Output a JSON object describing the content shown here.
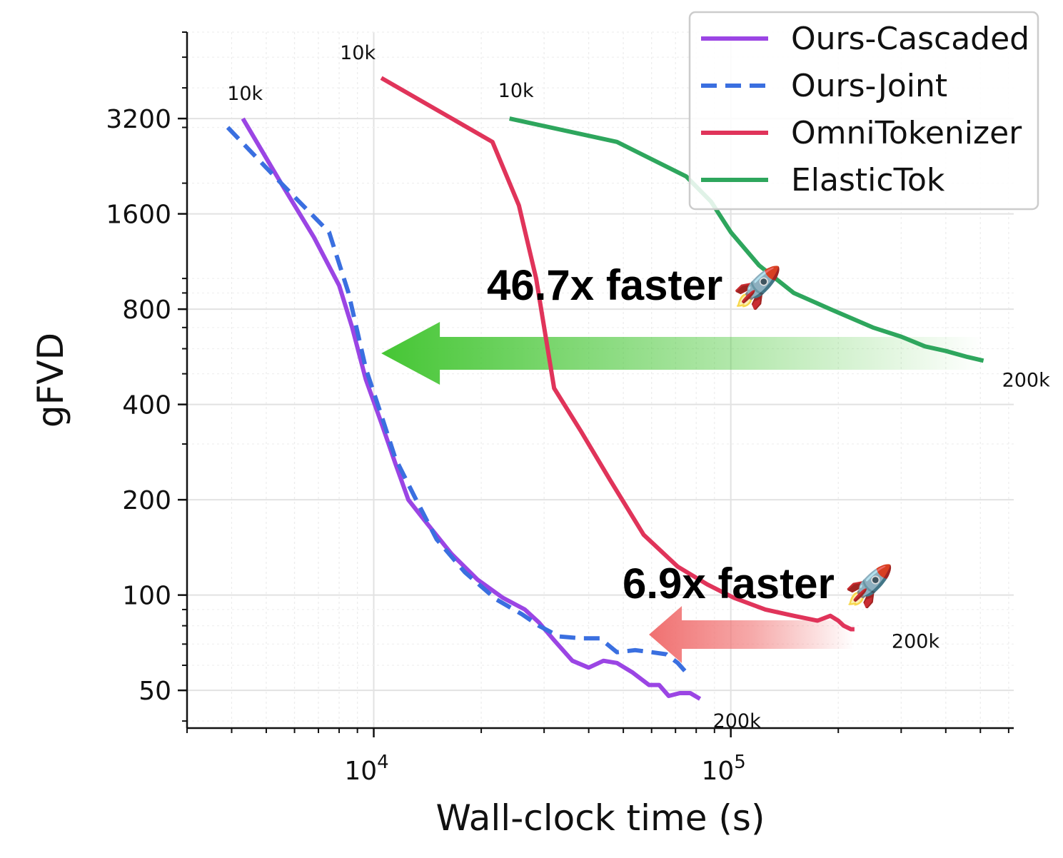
{
  "chart_data": {
    "type": "line",
    "xlabel": "Wall-clock time (s)",
    "ylabel": "gFVD",
    "xscale": "log",
    "yscale": "log",
    "xlim": [
      3000,
      620000
    ],
    "ylim": [
      38,
      6000
    ],
    "x_ticks": [
      {
        "value": 10000,
        "base": "10",
        "exp": "4"
      },
      {
        "value": 100000,
        "base": "10",
        "exp": "5"
      }
    ],
    "y_ticks": [
      {
        "value": 3200,
        "label": "3200"
      },
      {
        "value": 1600,
        "label": "1600"
      },
      {
        "value": 800,
        "label": "800"
      },
      {
        "value": 400,
        "label": "400"
      },
      {
        "value": 200,
        "label": "200"
      },
      {
        "value": 100,
        "label": "100"
      },
      {
        "value": 50,
        "label": "50"
      }
    ],
    "grid": true,
    "legend_position": "top-right",
    "series": [
      {
        "name": "Ours-Cascaded",
        "color": "#9b45e4",
        "dash": "solid",
        "x": [
          4300,
          5500,
          6800,
          8000,
          8700,
          9500,
          10500,
          11500,
          12500,
          14000,
          16500,
          19500,
          23000,
          26500,
          29000,
          32000,
          36000,
          40000,
          44000,
          48000,
          53000,
          59000,
          63000,
          67000,
          72000,
          77000,
          82000
        ],
        "y": [
          3200,
          2000,
          1350,
          950,
          700,
          480,
          350,
          260,
          200,
          170,
          135,
          112,
          98,
          90,
          82,
          72,
          62,
          59,
          62,
          61,
          57,
          52,
          52,
          48,
          49,
          49,
          47
        ]
      },
      {
        "name": "Ours-Joint",
        "color": "#3a6fe0",
        "dash": "dashed",
        "x": [
          3900,
          5500,
          7500,
          8500,
          9500,
          10500,
          11500,
          13000,
          15000,
          18000,
          22000,
          26000,
          29000,
          33000,
          38000,
          43000,
          48000,
          54000,
          60000,
          66000,
          71000,
          76000
        ],
        "y": [
          3000,
          2000,
          1400,
          900,
          520,
          370,
          270,
          205,
          150,
          118,
          97,
          87,
          80,
          74,
          73,
          73,
          66,
          67,
          66,
          65,
          61,
          56
        ]
      },
      {
        "name": "OmniTokenizer",
        "color": "#e0345a",
        "dash": "solid",
        "x": [
          10500,
          21500,
          25500,
          28500,
          32000,
          38000,
          46000,
          57000,
          71000,
          86000,
          102000,
          125000,
          150000,
          175000,
          190000,
          200000,
          207000,
          217000,
          222000
        ],
        "y": [
          4300,
          2700,
          1700,
          1000,
          450,
          330,
          230,
          155,
          123,
          108,
          98,
          90,
          86,
          83,
          86,
          83,
          80,
          78,
          78
        ]
      },
      {
        "name": "ElasticTok",
        "color": "#2ea65d",
        "dash": "solid",
        "x": [
          24000,
          48000,
          75000,
          88000,
          100000,
          120000,
          150000,
          190000,
          250000,
          300000,
          350000,
          400000,
          460000,
          510000
        ],
        "y": [
          3200,
          2700,
          2100,
          1750,
          1400,
          1100,
          900,
          800,
          700,
          655,
          610,
          590,
          565,
          550
        ]
      }
    ],
    "annotations": [
      {
        "text": "10k",
        "x": 4300,
        "y": 3200
      },
      {
        "text": "10k",
        "x": 10500,
        "y": 4300
      },
      {
        "text": "10k",
        "x": 24000,
        "y": 3200
      },
      {
        "text": "200k",
        "x": 510000,
        "y": 550
      },
      {
        "text": "200k",
        "x": 222000,
        "y": 78
      },
      {
        "text": "200k",
        "x": 82000,
        "y": 47
      }
    ],
    "callouts": [
      {
        "text": "46.7x faster",
        "icon": "rocket-emoji",
        "arrow_color": "#45c634",
        "from_x": 510000,
        "to_x": 10500,
        "at_y": 580
      },
      {
        "text": "6.9x faster",
        "icon": "rocket-emoji",
        "arrow_color": "#f07070",
        "from_x": 222000,
        "to_x": 59000,
        "at_y": 75
      }
    ]
  }
}
